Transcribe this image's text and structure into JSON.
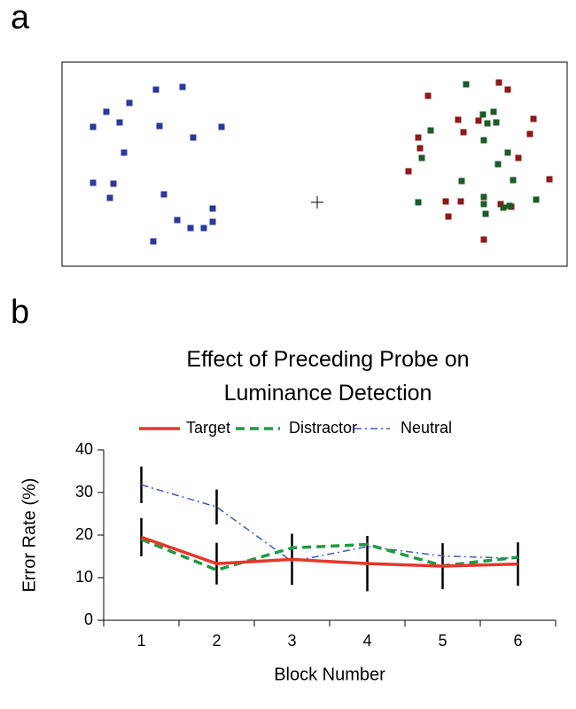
{
  "panel_labels": [
    "a",
    "b"
  ],
  "chart_data": {
    "type": "line",
    "title": "Effect of Preceding Probe on Luminance Detection",
    "x_label": "Block Number",
    "y_label": "Error Rate (%)",
    "categories": [
      "1",
      "2",
      "3",
      "4",
      "5",
      "6"
    ],
    "ylim": [
      0,
      40
    ],
    "yticks": [
      0,
      10,
      20,
      30,
      40
    ],
    "series": [
      {
        "name": "Target",
        "color": "#e8352a",
        "style": "solid",
        "values": [
          19.5,
          13.3,
          14.3,
          13.3,
          12.7,
          13.2
        ],
        "errors": [
          4.5,
          4.9,
          6,
          6.5,
          5.4,
          5.1
        ]
      },
      {
        "name": "Distractor",
        "color": "#1e9a45",
        "style": "dashed",
        "values": [
          19,
          11.8,
          17,
          17.8,
          12.8,
          14.8
        ]
      },
      {
        "name": "Neutral",
        "color": "#3a5dbf",
        "style": "dashdot",
        "values": [
          31.8,
          26.6,
          13.8,
          17.3,
          15.1,
          14.5
        ],
        "errors": [
          4.3,
          4.1,
          null,
          null,
          null,
          null
        ]
      }
    ]
  }
}
